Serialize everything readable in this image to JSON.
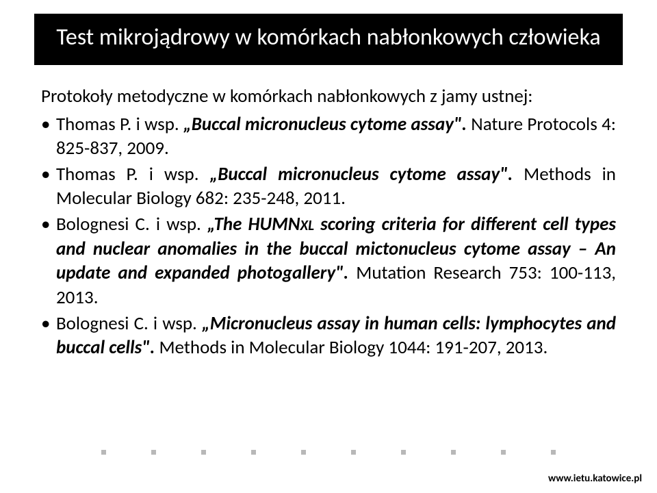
{
  "title": "Test mikrojądrowy w komórkach nabłonkowych człowieka",
  "intro": "Protokoły metodyczne w komórkach nabłonkowych z jamy ustnej:",
  "bullets": [
    {
      "author": "Thomas P. i wsp.",
      "q1": "„",
      "ital": "Buccal micronucleus cytome assay",
      "q2": "\".",
      "tail": " Nature Protocols 4: 825-837, 2009."
    },
    {
      "author": "Thomas P. i wsp.",
      "q1": "„",
      "ital": "Buccal micronucleus cytome assay",
      "q2": "\".",
      "tail": " Methods in Molecular Biology 682: 235-248, 2011."
    },
    {
      "author": "Bolognesi C. i wsp.",
      "q1": "„",
      "ital_pre": "The HUMN",
      "ital_sc": "XL",
      "ital_post": " scoring criteria for different cell types and nuclear anomalies in the buccal mictonucleus cytome assay – An update and expanded photogallery",
      "q2": "\".",
      "tail": " Mutation Research 753: 100-113, 2013."
    },
    {
      "author": "Bolognesi C. i wsp.",
      "q1": "„",
      "ital": "Micronucleus assay in human cells: lymphocytes and buccal cells",
      "q2": "\".",
      "tail": " Methods in Molecular Biology 1044: 191-207, 2013."
    }
  ],
  "dots_count": 10,
  "footer_url": "www.ietu.katowice.pl",
  "colors": {
    "title_bg": "#000000",
    "title_fg": "#ffffff",
    "text": "#000000",
    "dot": "#b8b8b8",
    "background": "#ffffff"
  }
}
